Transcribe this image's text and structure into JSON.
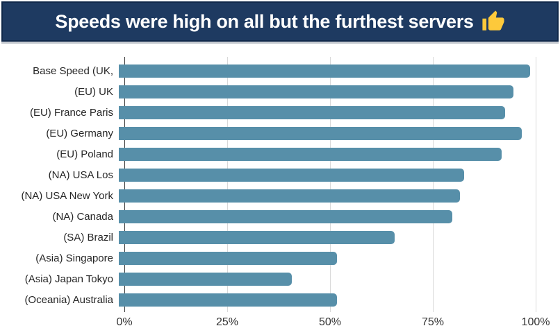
{
  "header": {
    "title": "Speeds were high on all but the furthest servers",
    "emoji": "thumbs-up"
  },
  "colors": {
    "bar": "#578fa9",
    "banner_background": "#1e3a61",
    "banner_border": "#10284a",
    "banner_shadow": "#c5cad0",
    "gridline": "#d9d9d9",
    "axis": "#3a3a3a",
    "title_text": "#ffffff",
    "thumb_yellow": "#fdc93b"
  },
  "chart_data": {
    "type": "bar",
    "orientation": "horizontal",
    "title": "Speeds were high on all but the furthest servers",
    "xlabel": "",
    "ylabel": "",
    "xlim": [
      0,
      100
    ],
    "grid": true,
    "legend": false,
    "unit": "%",
    "categories": [
      "Base Speed (UK,",
      "(EU) UK",
      "(EU) France Paris",
      "(EU) Germany",
      "(EU) Poland",
      "(NA) USA Los",
      "(NA) USA New York",
      "(NA) Canada",
      "(SA) Brazil",
      "(Asia) Singapore",
      "(Asia) Japan Tokyo",
      "(Oceania) Australia"
    ],
    "values": [
      100,
      96,
      94,
      98,
      93,
      84,
      83,
      81,
      67,
      53,
      42,
      53
    ],
    "x_ticks": [
      "0%",
      "25%",
      "50%",
      "75%",
      "100%"
    ],
    "x_tick_values": [
      0,
      25,
      50,
      75,
      100
    ]
  }
}
